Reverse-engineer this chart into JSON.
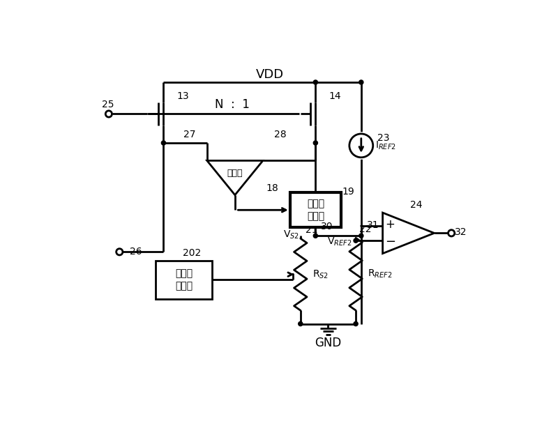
{
  "bg_color": "#ffffff",
  "lw": 2.0,
  "vdd_label": "VDD",
  "gnd_label": "GND",
  "n1_label": "N  :  1",
  "amp_label": "放大器",
  "nfb_label1": "负反馈",
  "nfb_label2": "控制器",
  "prog_label1": "可编程",
  "prog_label2": "控制器",
  "vs2_label": "V$_{S2}$",
  "vref2_label": "V$_{REF2}$",
  "iref2_label": "I$_{REF2}$",
  "rs2_label": "R$_{S2}$",
  "rref2_label": "R$_{REF2}$"
}
